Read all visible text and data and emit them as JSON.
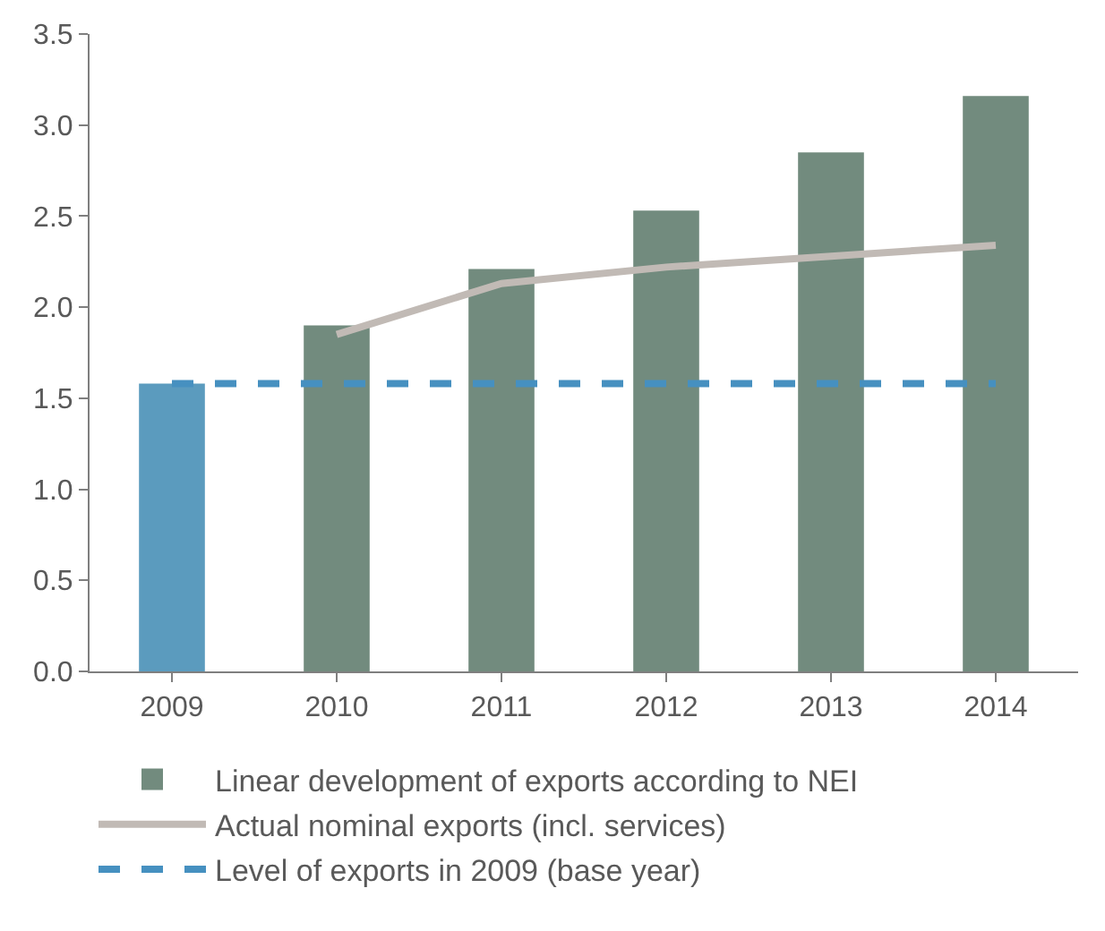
{
  "chart_data": {
    "type": "bar",
    "categories": [
      "2009",
      "2010",
      "2011",
      "2012",
      "2013",
      "2014"
    ],
    "series": [
      {
        "name": "Linear development of exports according to NEI",
        "type": "bar",
        "color": "#728b7e",
        "colors": [
          "#5b9bbe",
          "#728b7e",
          "#728b7e",
          "#728b7e",
          "#728b7e",
          "#728b7e"
        ],
        "values": [
          1.58,
          1.9,
          2.21,
          2.53,
          2.85,
          3.16
        ]
      },
      {
        "name": "Actual nominal exports (incl. services)",
        "type": "line",
        "color": "#c1bab5",
        "line_style": "solid",
        "values": [
          null,
          1.85,
          2.13,
          2.22,
          2.28,
          2.34
        ]
      },
      {
        "name": "Level of exports in 2009 (base year)",
        "type": "line",
        "color": "#4690c0",
        "line_style": "dashed",
        "values": [
          1.58,
          1.58,
          1.58,
          1.58,
          1.58,
          1.58
        ]
      }
    ],
    "ylim": [
      0,
      3.5
    ],
    "yticks": [
      {
        "value": 0,
        "label": "0.0"
      },
      {
        "value": 0.5,
        "label": "0.5"
      },
      {
        "value": 1,
        "label": "1.0"
      },
      {
        "value": 1.5,
        "label": "1.5"
      },
      {
        "value": 2,
        "label": "2.0"
      },
      {
        "value": 2.5,
        "label": "2.5"
      },
      {
        "value": 3,
        "label": "3.0"
      },
      {
        "value": 3.5,
        "label": "3.5"
      }
    ],
    "legend": "bottom left",
    "marker": "none"
  }
}
